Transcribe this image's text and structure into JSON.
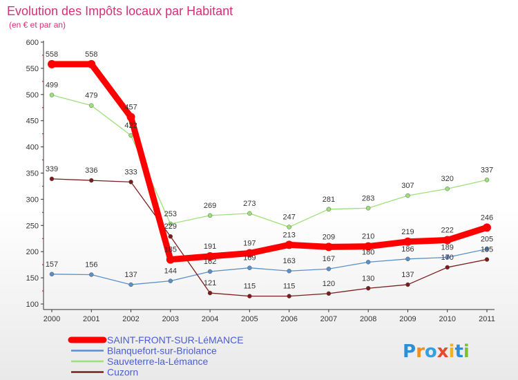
{
  "chart_data": {
    "type": "line",
    "title": "Evolution des Impôts locaux par Habitant",
    "subtitle": "(en € et par an)",
    "xlabel": "",
    "ylabel": "",
    "x": [
      2000,
      2001,
      2002,
      2003,
      2004,
      2005,
      2006,
      2007,
      2008,
      2009,
      2010,
      2011
    ],
    "ylim": [
      100,
      600
    ],
    "yticks": [
      100,
      150,
      200,
      250,
      300,
      350,
      400,
      450,
      500,
      550,
      600
    ],
    "grid": false,
    "legend_position": "bottom-left",
    "series": [
      {
        "name": "SAINT-FRONT-SUR-LéMANCE",
        "color": "#ff0000",
        "emphasis": true,
        "values": [
          558,
          558,
          457,
          185,
          191,
          197,
          213,
          209,
          210,
          219,
          222,
          246
        ]
      },
      {
        "name": "Blanquefort-sur-Briolance",
        "color": "#5b8fc7",
        "emphasis": false,
        "values": [
          157,
          156,
          137,
          144,
          162,
          169,
          163,
          167,
          180,
          186,
          189,
          205
        ]
      },
      {
        "name": "Sauveterre-la-Lémance",
        "color": "#9ee07a",
        "emphasis": false,
        "values": [
          499,
          479,
          422,
          253,
          269,
          273,
          247,
          281,
          283,
          307,
          320,
          337
        ]
      },
      {
        "name": "Cuzorn",
        "color": "#7a1c1c",
        "emphasis": false,
        "values": [
          339,
          336,
          333,
          229,
          121,
          115,
          115,
          120,
          130,
          137,
          170,
          185
        ]
      }
    ]
  },
  "logo": {
    "text": "Proxiti"
  },
  "colors": {
    "title": "#d62f7a",
    "axis": "#333333",
    "legend_text": "#4a5bd6",
    "label_text": "#333333"
  }
}
